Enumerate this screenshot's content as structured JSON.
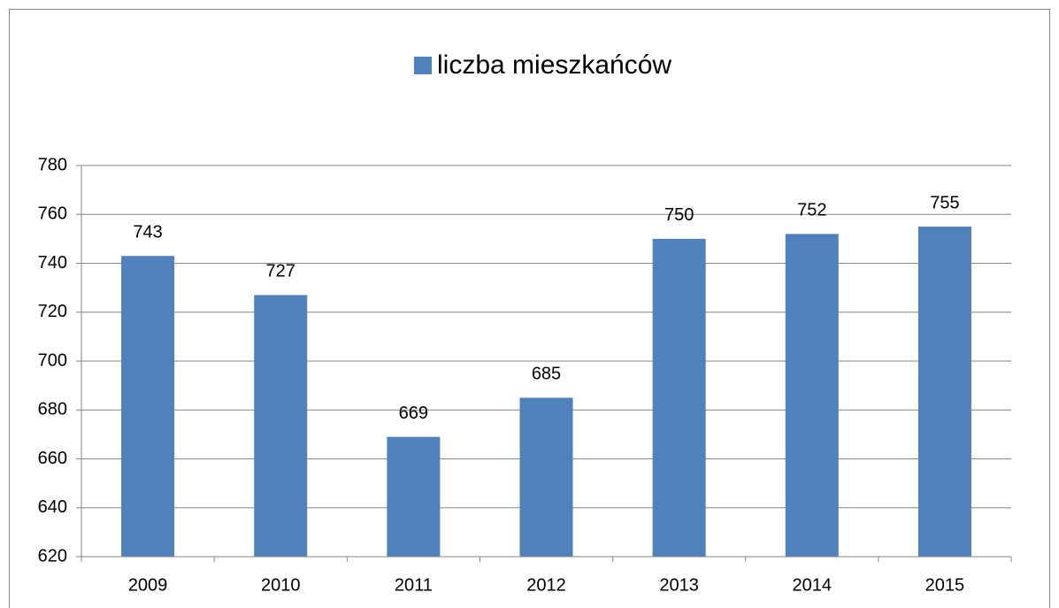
{
  "chart_data": {
    "type": "bar",
    "categories": [
      "2009",
      "2010",
      "2011",
      "2012",
      "2013",
      "2014",
      "2015"
    ],
    "series": [
      {
        "name": "liczba mieszkańców",
        "color": "#4f81bd",
        "values": [
          743,
          727,
          669,
          685,
          750,
          752,
          755
        ]
      }
    ],
    "ylim": [
      620,
      780
    ],
    "yticks": [
      620,
      640,
      660,
      680,
      700,
      720,
      740,
      760,
      780
    ],
    "grid": true,
    "legend": "top",
    "data_labels": true
  }
}
